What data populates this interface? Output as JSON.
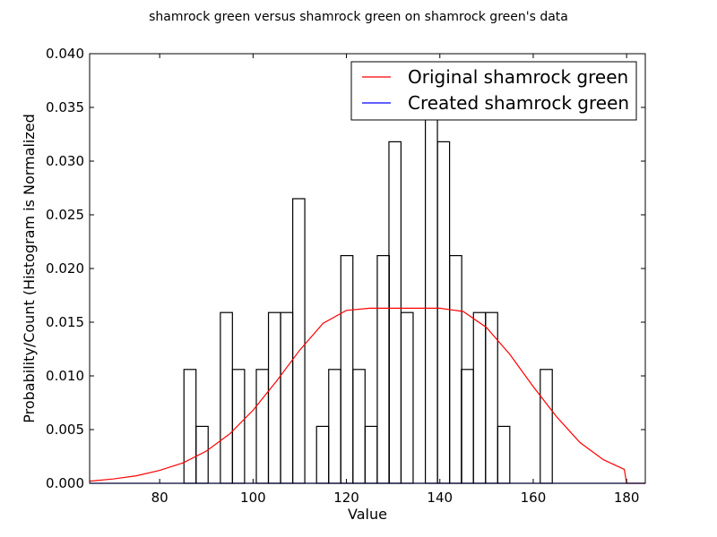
{
  "chart_data": {
    "type": "histogram+line",
    "title": "shamrock green versus shamrock green on shamrock green's data",
    "xlabel": "Value",
    "ylabel": "Probability/Count (Histogram is Normalized",
    "xlim": [
      65,
      184
    ],
    "ylim": [
      0,
      0.04
    ],
    "x_ticks": [
      80,
      100,
      120,
      140,
      160,
      180
    ],
    "y_ticks": [
      0.0,
      0.005,
      0.01,
      0.015,
      0.02,
      0.025,
      0.03,
      0.035,
      0.04
    ],
    "grid": false,
    "legend_position": "top-right",
    "histogram": {
      "bin_width": 2.58,
      "bins": [
        {
          "x0": 85.2,
          "value": 0.0106
        },
        {
          "x0": 87.8,
          "value": 0.0053
        },
        {
          "x0": 93.0,
          "value": 0.0159
        },
        {
          "x0": 95.6,
          "value": 0.0106
        },
        {
          "x0": 100.7,
          "value": 0.0106
        },
        {
          "x0": 103.3,
          "value": 0.0159
        },
        {
          "x0": 105.9,
          "value": 0.0159
        },
        {
          "x0": 108.5,
          "value": 0.0265
        },
        {
          "x0": 113.6,
          "value": 0.0053
        },
        {
          "x0": 116.2,
          "value": 0.0106
        },
        {
          "x0": 118.8,
          "value": 0.0212
        },
        {
          "x0": 121.4,
          "value": 0.0106
        },
        {
          "x0": 124.0,
          "value": 0.0053
        },
        {
          "x0": 126.6,
          "value": 0.0212
        },
        {
          "x0": 129.1,
          "value": 0.0318
        },
        {
          "x0": 131.7,
          "value": 0.0159
        },
        {
          "x0": 136.9,
          "value": 0.0371
        },
        {
          "x0": 139.5,
          "value": 0.0318
        },
        {
          "x0": 142.1,
          "value": 0.0212
        },
        {
          "x0": 144.6,
          "value": 0.0106
        },
        {
          "x0": 147.2,
          "value": 0.0159
        },
        {
          "x0": 149.8,
          "value": 0.0159
        },
        {
          "x0": 152.4,
          "value": 0.0053
        },
        {
          "x0": 161.5,
          "value": 0.0106
        }
      ]
    },
    "series": [
      {
        "name": "Original shamrock green",
        "color": "#ff0000",
        "x": [
          65,
          70,
          75,
          80,
          85,
          90,
          95,
          100,
          105,
          110,
          115,
          120,
          125,
          130,
          135,
          140,
          145,
          150,
          155,
          160,
          165,
          170,
          175,
          179.5,
          180,
          184
        ],
        "y": [
          0.0002,
          0.0004,
          0.0007,
          0.0012,
          0.0019,
          0.003,
          0.0046,
          0.0068,
          0.0095,
          0.0124,
          0.0149,
          0.0161,
          0.0163,
          0.0163,
          0.0163,
          0.0163,
          0.016,
          0.0145,
          0.012,
          0.009,
          0.0062,
          0.0038,
          0.0022,
          0.0013,
          0.0,
          0.0
        ]
      },
      {
        "name": "Created shamrock green",
        "color": "#0000ff",
        "x": [
          65,
          184
        ],
        "y": [
          0,
          0
        ]
      }
    ]
  }
}
